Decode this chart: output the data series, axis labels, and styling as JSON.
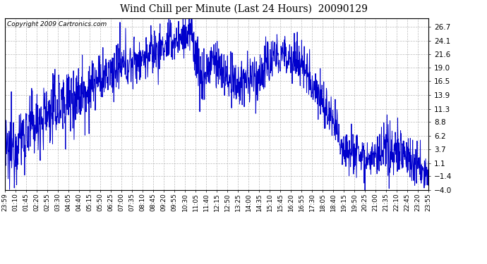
{
  "title": "Wind Chill per Minute (Last 24 Hours)  20090129",
  "copyright": "Copyright 2009 Cartronics.com",
  "line_color": "#0000CC",
  "background_color": "#ffffff",
  "plot_bg_color": "#ffffff",
  "grid_color": "#aaaaaa",
  "ylim": [
    -4.0,
    28.3
  ],
  "yticks": [
    -4.0,
    -1.4,
    1.1,
    3.7,
    6.2,
    8.8,
    11.3,
    13.9,
    16.5,
    19.0,
    21.6,
    24.1,
    26.7
  ],
  "xtick_labels": [
    "23:59",
    "01:10",
    "01:45",
    "02:20",
    "02:55",
    "03:30",
    "04:05",
    "04:40",
    "05:15",
    "05:50",
    "06:25",
    "07:00",
    "07:35",
    "08:10",
    "08:45",
    "09:20",
    "09:55",
    "10:30",
    "11:05",
    "11:40",
    "12:15",
    "12:50",
    "13:25",
    "14:00",
    "14:35",
    "15:10",
    "15:45",
    "16:20",
    "16:55",
    "17:30",
    "18:05",
    "18:40",
    "19:15",
    "19:50",
    "20:25",
    "21:00",
    "21:35",
    "22:10",
    "22:45",
    "23:20",
    "23:55"
  ],
  "line_width": 0.7,
  "figsize": [
    6.9,
    3.75
  ],
  "dpi": 100,
  "title_fontsize": 10,
  "copyright_fontsize": 6.5,
  "tick_fontsize": 6.5,
  "ytick_fontsize": 7.5
}
